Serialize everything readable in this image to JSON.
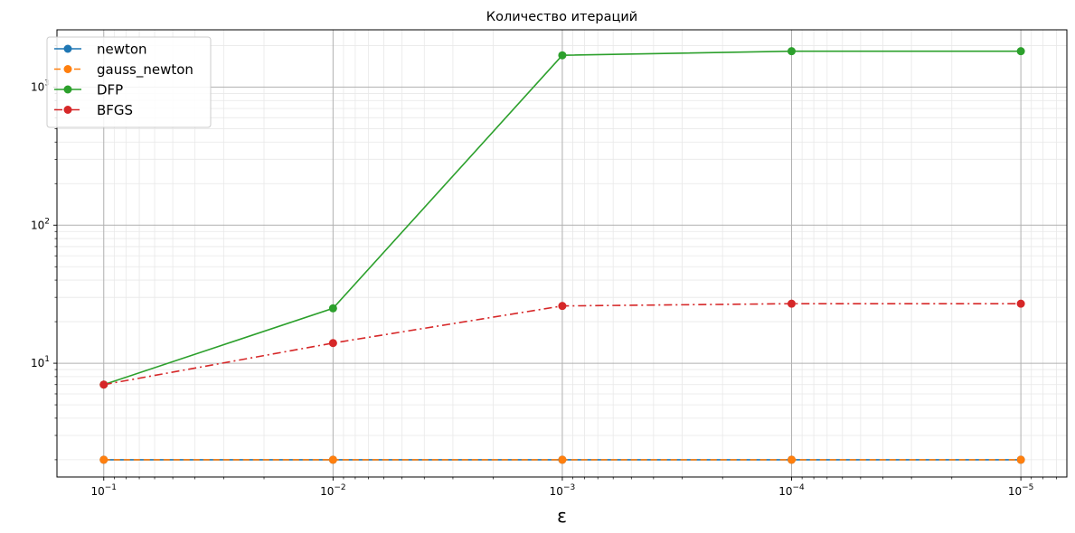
{
  "chart_data": {
    "type": "line",
    "title": "Количество итераций",
    "xlabel": "ε",
    "ylabel": "",
    "x_scale": "log",
    "x_inverted": true,
    "y_scale": "log",
    "xlim": [
      0.16,
      6.3e-06
    ],
    "ylim": [
      1.5,
      2600
    ],
    "x": [
      0.1,
      0.01,
      0.001,
      0.0001,
      1e-05
    ],
    "x_tick_labels": [
      {
        "value": 0.1,
        "base": "10",
        "exp": "−1"
      },
      {
        "value": 0.01,
        "base": "10",
        "exp": "−2"
      },
      {
        "value": 0.001,
        "base": "10",
        "exp": "−3"
      },
      {
        "value": 0.0001,
        "base": "10",
        "exp": "−4"
      },
      {
        "value": 1e-05,
        "base": "10",
        "exp": "−5"
      }
    ],
    "y_tick_labels": [
      {
        "value": 10,
        "base": "10",
        "exp": "1"
      },
      {
        "value": 100,
        "base": "10",
        "exp": "2"
      },
      {
        "value": 1000,
        "base": "10",
        "exp": "3"
      }
    ],
    "grid": {
      "major": true,
      "minor": true
    },
    "legend_position": "top-left",
    "series": [
      {
        "name": "newton",
        "values": [
          2,
          2,
          2,
          2,
          2
        ],
        "color": "#1f77b4",
        "linestyle": "solid",
        "marker": "circle"
      },
      {
        "name": "gauss_newton",
        "values": [
          2,
          2,
          2,
          2,
          2
        ],
        "color": "#ff7f0e",
        "linestyle": "dashed",
        "marker": "circle"
      },
      {
        "name": "DFP",
        "values": [
          7,
          25,
          1700,
          1820,
          1820
        ],
        "color": "#2ca02c",
        "linestyle": "solid",
        "marker": "circle"
      },
      {
        "name": "BFGS",
        "values": [
          7,
          14,
          26,
          27,
          27
        ],
        "color": "#d62728",
        "linestyle": "dashdot",
        "marker": "circle"
      }
    ]
  }
}
